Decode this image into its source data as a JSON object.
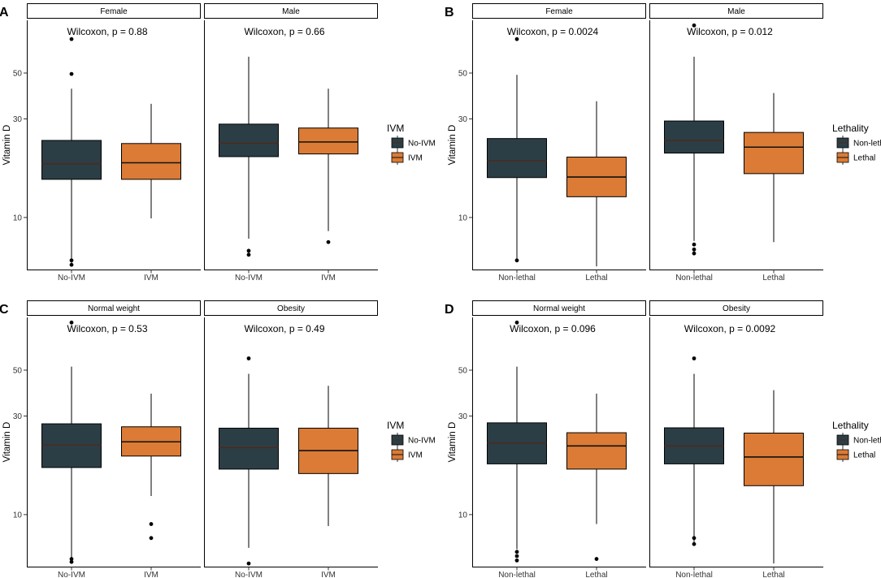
{
  "colors": {
    "group1": "#2c3e45",
    "group2": "#db7b35",
    "axis": "#000000",
    "median_on_dark": "#4a2a20",
    "median_on_light": "#111111"
  },
  "chart_data": [
    {
      "panel": "A",
      "type": "boxplot",
      "ylabel": "Vitamin D",
      "yscale": "log10",
      "ylim": [
        5.6,
        90
      ],
      "yticks": [
        10,
        30,
        50
      ],
      "legend": {
        "title": "IVM",
        "entries": [
          "No-IVM",
          "IVM"
        ]
      },
      "facets": [
        {
          "label": "Female",
          "annotation": "Wilcoxon, p = 0.88",
          "categories": [
            "No-IVM",
            "IVM"
          ],
          "boxes": [
            {
              "group": 1,
              "q1": 15.3,
              "median": 18.2,
              "q3": 23.6,
              "whisker_low": 5.9,
              "whisker_high": 42,
              "outliers": [
                6.2,
                5.9,
                49.5,
                73
              ]
            },
            {
              "group": 2,
              "q1": 15.3,
              "median": 18.4,
              "q3": 22.8,
              "whisker_low": 9.9,
              "whisker_high": 35.5,
              "outliers": []
            }
          ]
        },
        {
          "label": "Male",
          "annotation": "Wilcoxon, p = 0.66",
          "categories": [
            "No-IVM",
            "IVM"
          ],
          "boxes": [
            {
              "group": 1,
              "q1": 19.7,
              "median": 22.9,
              "q3": 28.3,
              "whisker_low": 7.9,
              "whisker_high": 60,
              "outliers": [
                6.9,
                6.6
              ]
            },
            {
              "group": 2,
              "q1": 20.3,
              "median": 23.2,
              "q3": 27.1,
              "whisker_low": 8.6,
              "whisker_high": 42,
              "outliers": [
                7.6
              ]
            }
          ]
        }
      ]
    },
    {
      "panel": "B",
      "type": "boxplot",
      "ylabel": "Vitamin D",
      "yscale": "log10",
      "ylim": [
        5.6,
        90
      ],
      "yticks": [
        10,
        30,
        50
      ],
      "legend": {
        "title": "Lethality",
        "entries": [
          "Non-lethal",
          "Lethal"
        ]
      },
      "facets": [
        {
          "label": "Female",
          "annotation": "Wilcoxon, p = 0.0024",
          "categories": [
            "Non-lethal",
            "Lethal"
          ],
          "boxes": [
            {
              "group": 1,
              "q1": 15.6,
              "median": 18.8,
              "q3": 24.1,
              "whisker_low": 6.2,
              "whisker_high": 49,
              "outliers": [
                6.2,
                73
              ]
            },
            {
              "group": 2,
              "q1": 12.6,
              "median": 15.7,
              "q3": 19.6,
              "whisker_low": 5.8,
              "whisker_high": 36.5,
              "outliers": []
            }
          ]
        },
        {
          "label": "Male",
          "annotation": "Wilcoxon, p = 0.012",
          "categories": [
            "Non-lethal",
            "Lethal"
          ],
          "boxes": [
            {
              "group": 1,
              "q1": 20.5,
              "median": 23.6,
              "q3": 29.3,
              "whisker_low": 7.7,
              "whisker_high": 60,
              "outliers": [
                7.4,
                7.0,
                6.7,
                85
              ]
            },
            {
              "group": 2,
              "q1": 16.3,
              "median": 21.9,
              "q3": 25.8,
              "whisker_low": 7.6,
              "whisker_high": 40,
              "outliers": []
            }
          ]
        }
      ]
    },
    {
      "panel": "C",
      "type": "boxplot",
      "ylabel": "Vitamin D",
      "yscale": "log10",
      "ylim": [
        5.6,
        90
      ],
      "yticks": [
        10,
        30,
        50
      ],
      "legend": {
        "title": "IVM",
        "entries": [
          "No-IVM",
          "IVM"
        ]
      },
      "facets": [
        {
          "label": "Normal weight",
          "annotation": "Wilcoxon, p = 0.53",
          "categories": [
            "No-IVM",
            "IVM"
          ],
          "boxes": [
            {
              "group": 1,
              "q1": 16.9,
              "median": 21.7,
              "q3": 27.5,
              "whisker_low": 6.1,
              "whisker_high": 52,
              "outliers": [
                6.1,
                5.9,
                85
              ]
            },
            {
              "group": 2,
              "q1": 19.2,
              "median": 22.5,
              "q3": 26.6,
              "whisker_low": 12.3,
              "whisker_high": 38.5,
              "outliers": [
                9.0,
                7.7
              ]
            }
          ]
        },
        {
          "label": "Obesity",
          "annotation": "Wilcoxon, p = 0.49",
          "categories": [
            "No-IVM",
            "IVM"
          ],
          "boxes": [
            {
              "group": 1,
              "q1": 16.6,
              "median": 21.1,
              "q3": 26.2,
              "whisker_low": 6.9,
              "whisker_high": 48,
              "outliers": [
                5.8,
                57
              ]
            },
            {
              "group": 2,
              "q1": 15.8,
              "median": 20.4,
              "q3": 26.2,
              "whisker_low": 8.8,
              "whisker_high": 42,
              "outliers": []
            }
          ]
        }
      ]
    },
    {
      "panel": "D",
      "type": "boxplot",
      "ylabel": "Vitamin D",
      "yscale": "log10",
      "ylim": [
        5.6,
        90
      ],
      "yticks": [
        10,
        30,
        50
      ],
      "legend": {
        "title": "Lethality",
        "entries": [
          "Non-lethal",
          "Lethal"
        ]
      },
      "facets": [
        {
          "label": "Normal weight",
          "annotation": "Wilcoxon, p = 0.096",
          "categories": [
            "Non-lethal",
            "Lethal"
          ],
          "boxes": [
            {
              "group": 1,
              "q1": 17.6,
              "median": 22.2,
              "q3": 27.8,
              "whisker_low": 6.8,
              "whisker_high": 52,
              "outliers": [
                6.6,
                6.3,
                6.0,
                85
              ]
            },
            {
              "group": 2,
              "q1": 16.6,
              "median": 21.5,
              "q3": 24.9,
              "whisker_low": 9.0,
              "whisker_high": 38.5,
              "outliers": [
                6.1
              ]
            }
          ]
        },
        {
          "label": "Obesity",
          "annotation": "Wilcoxon, p = 0.0092",
          "categories": [
            "Non-lethal",
            "Lethal"
          ],
          "boxes": [
            {
              "group": 1,
              "q1": 17.6,
              "median": 21.5,
              "q3": 26.3,
              "whisker_low": 7.1,
              "whisker_high": 48,
              "outliers": [
                7.7,
                7.2,
                57
              ]
            },
            {
              "group": 2,
              "q1": 13.8,
              "median": 19.0,
              "q3": 24.8,
              "whisker_low": 5.8,
              "whisker_high": 40,
              "outliers": []
            }
          ]
        }
      ]
    }
  ]
}
